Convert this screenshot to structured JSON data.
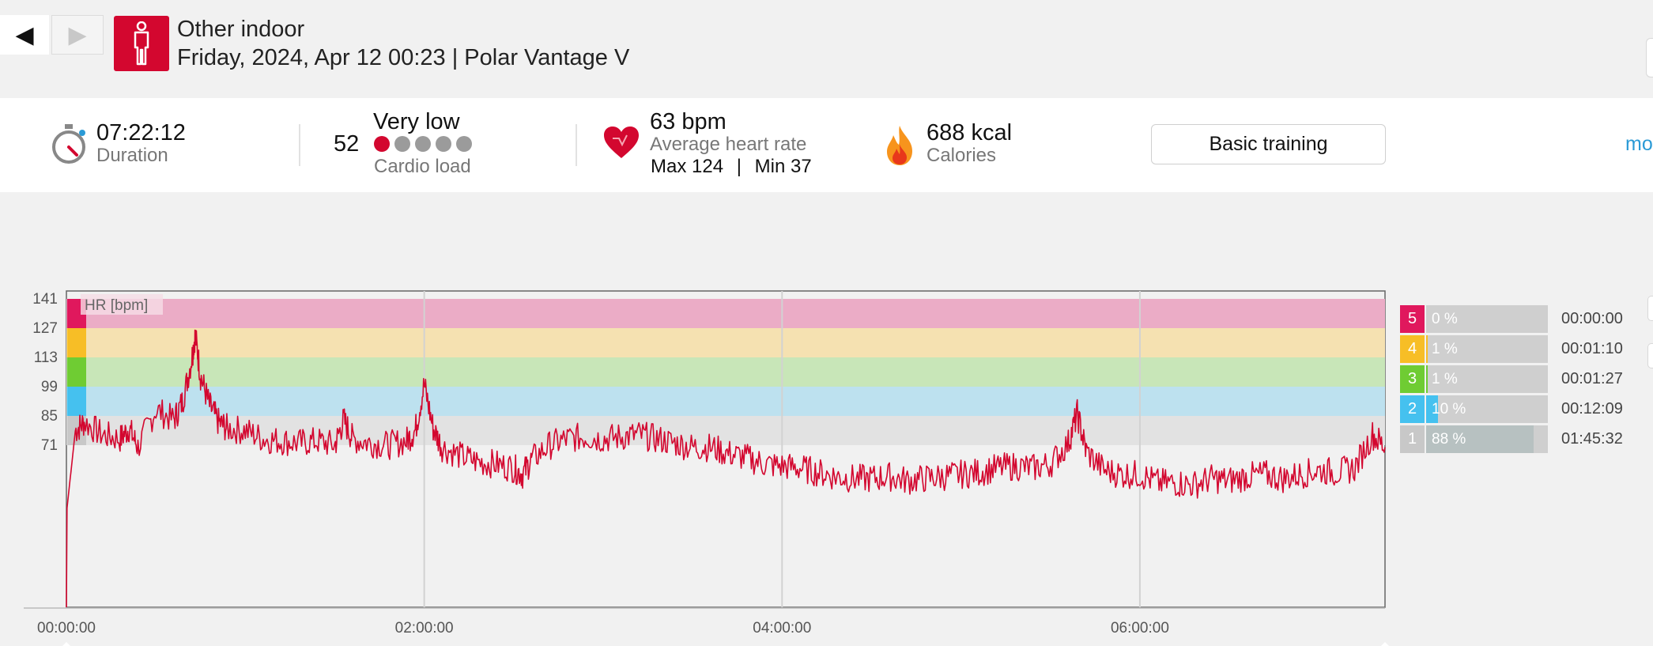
{
  "nav": {
    "back_symbol": "◀",
    "forward_symbol": "▶"
  },
  "header": {
    "sport_icon": "person-standing-icon",
    "title": "Other indoor",
    "subtitle": "Friday, 2024, Apr 12 00:23 | Polar Vantage V"
  },
  "summary": {
    "duration": {
      "value": "07:22:12",
      "label": "Duration",
      "icon": "stopwatch-icon"
    },
    "cardio": {
      "value": "52",
      "level": "Very low",
      "label": "Cardio load",
      "dots_filled": 1,
      "dots_total": 5
    },
    "heart": {
      "value": "63 bpm",
      "label": "Average heart rate",
      "max": "Max 124",
      "separator": "|",
      "min": "Min 37",
      "icon": "heart-icon"
    },
    "calories": {
      "value": "688 kcal",
      "label": "Calories",
      "icon": "flame-icon"
    },
    "benefit_button": "Basic training",
    "more_link": "mo"
  },
  "colors": {
    "brand_red": "#d3072f",
    "zone5": "#e0185d",
    "zone4": "#f7be26",
    "zone3": "#6fcc33",
    "zone2": "#45c1ef",
    "zone1": "#c8c8c8"
  },
  "zones": [
    {
      "zone": "5",
      "percent": "0 %",
      "fraction": 0.0,
      "time": "00:00:00",
      "color": "#e0185d",
      "band_color": "#ebacc6",
      "lower": 127,
      "upper": 141
    },
    {
      "zone": "4",
      "percent": "1 %",
      "fraction": 0.01,
      "time": "00:01:10",
      "color": "#f7be26",
      "band_color": "#f5e1b1",
      "lower": 113,
      "upper": 127
    },
    {
      "zone": "3",
      "percent": "1 %",
      "fraction": 0.01,
      "time": "00:01:27",
      "color": "#6fcc33",
      "band_color": "#c8e6b8",
      "lower": 99,
      "upper": 113
    },
    {
      "zone": "2",
      "percent": "10 %",
      "fraction": 0.1,
      "time": "00:12:09",
      "color": "#45c1ef",
      "band_color": "#bde1ef",
      "lower": 85,
      "upper": 99
    },
    {
      "zone": "1",
      "percent": "88 %",
      "fraction": 0.88,
      "time": "01:45:32",
      "color": "#c8c8c8",
      "band_color": "#e2e2e2",
      "lower": 71,
      "upper": 85
    }
  ],
  "chart_data": {
    "type": "line",
    "series_label": "HR [bpm]",
    "x_unit": "hours elapsed",
    "x_ticks": [
      {
        "label": "00:00:00",
        "value": 0
      },
      {
        "label": "02:00:00",
        "value": 2
      },
      {
        "label": "04:00:00",
        "value": 4
      },
      {
        "label": "06:00:00",
        "value": 6
      }
    ],
    "y_ticks": [
      141,
      127,
      113,
      99,
      85,
      71
    ],
    "xlim": [
      0,
      7.37
    ],
    "ylim": [
      0,
      141
    ],
    "grid": "vertical at 2h intervals",
    "line_color": "#d3072f",
    "x": [
      0.0,
      0.05,
      0.1,
      0.2,
      0.3,
      0.35,
      0.4,
      0.5,
      0.6,
      0.65,
      0.7,
      0.72,
      0.75,
      0.8,
      0.85,
      0.9,
      1.0,
      1.1,
      1.2,
      1.3,
      1.4,
      1.5,
      1.55,
      1.6,
      1.7,
      1.8,
      1.9,
      1.95,
      2.0,
      2.05,
      2.1,
      2.2,
      2.3,
      2.4,
      2.5,
      2.55,
      2.6,
      2.7,
      2.8,
      2.9,
      3.0,
      3.1,
      3.2,
      3.3,
      3.4,
      3.5,
      3.6,
      3.7,
      3.8,
      3.9,
      4.0,
      4.1,
      4.2,
      4.3,
      4.4,
      4.5,
      4.6,
      4.7,
      4.8,
      4.9,
      5.0,
      5.1,
      5.2,
      5.3,
      5.4,
      5.5,
      5.6,
      5.65,
      5.7,
      5.8,
      5.9,
      6.0,
      6.1,
      6.2,
      6.3,
      6.4,
      6.5,
      6.6,
      6.7,
      6.8,
      6.9,
      7.0,
      7.1,
      7.2,
      7.3,
      7.37
    ],
    "values": [
      38,
      78,
      82,
      76,
      74,
      79,
      70,
      88,
      83,
      92,
      112,
      124,
      104,
      90,
      82,
      79,
      78,
      74,
      73,
      72,
      73,
      71,
      83,
      74,
      72,
      71,
      73,
      78,
      100,
      79,
      70,
      66,
      63,
      62,
      60,
      57,
      64,
      71,
      74,
      75,
      74,
      75,
      76,
      74,
      72,
      70,
      70,
      67,
      65,
      62,
      61,
      60,
      58,
      56,
      55,
      55,
      56,
      54,
      55,
      56,
      57,
      58,
      60,
      61,
      60,
      62,
      72,
      86,
      68,
      59,
      57,
      57,
      53,
      53,
      52,
      55,
      54,
      56,
      57,
      55,
      57,
      59,
      58,
      60,
      76,
      70
    ]
  }
}
